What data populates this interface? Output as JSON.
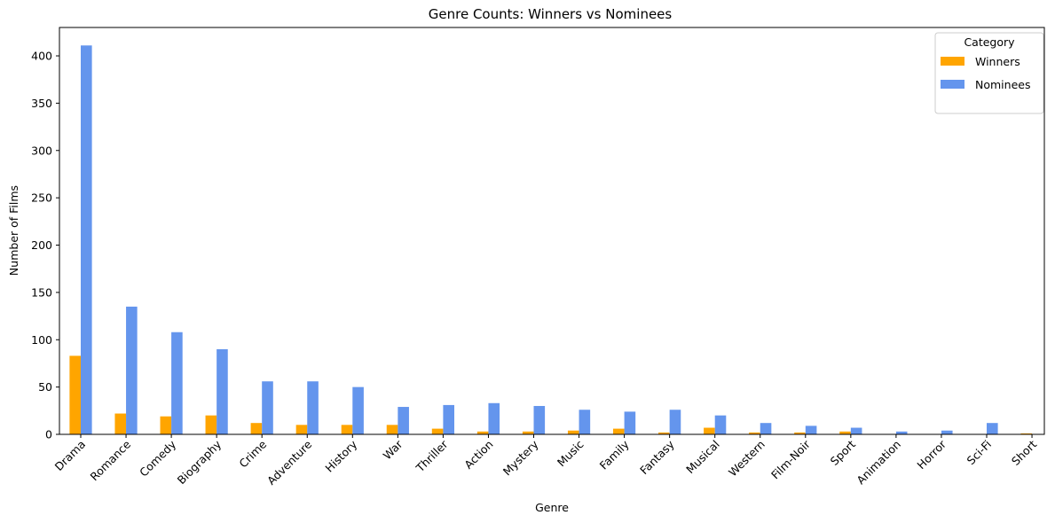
{
  "chart_data": {
    "type": "bar",
    "title": "Genre Counts: Winners vs Nominees",
    "xlabel": "Genre",
    "ylabel": "Number of Films",
    "ylim": [
      0,
      430
    ],
    "yticks": [
      0,
      50,
      100,
      150,
      200,
      250,
      300,
      350,
      400
    ],
    "categories": [
      "Drama",
      "Romance",
      "Comedy",
      "Biography",
      "Crime",
      "Adventure",
      "History",
      "War",
      "Thriller",
      "Action",
      "Mystery",
      "Music",
      "Family",
      "Fantasy",
      "Musical",
      "Western",
      "Film-Noir",
      "Sport",
      "Animation",
      "Horror",
      "Sci-Fi",
      "Short"
    ],
    "series": [
      {
        "name": "Winners",
        "color": "#FFA500",
        "values": [
          83,
          22,
          19,
          20,
          12,
          10,
          10,
          10,
          6,
          3,
          3,
          4,
          6,
          2,
          7,
          2,
          2,
          3,
          0,
          0,
          0,
          1
        ]
      },
      {
        "name": "Nominees",
        "color": "#6495ED",
        "values": [
          411,
          135,
          108,
          90,
          56,
          56,
          50,
          29,
          31,
          33,
          30,
          26,
          24,
          26,
          20,
          12,
          9,
          7,
          3,
          4,
          12,
          0
        ]
      }
    ],
    "legend": {
      "title": "Category",
      "position": "top-right"
    },
    "grid": false
  }
}
